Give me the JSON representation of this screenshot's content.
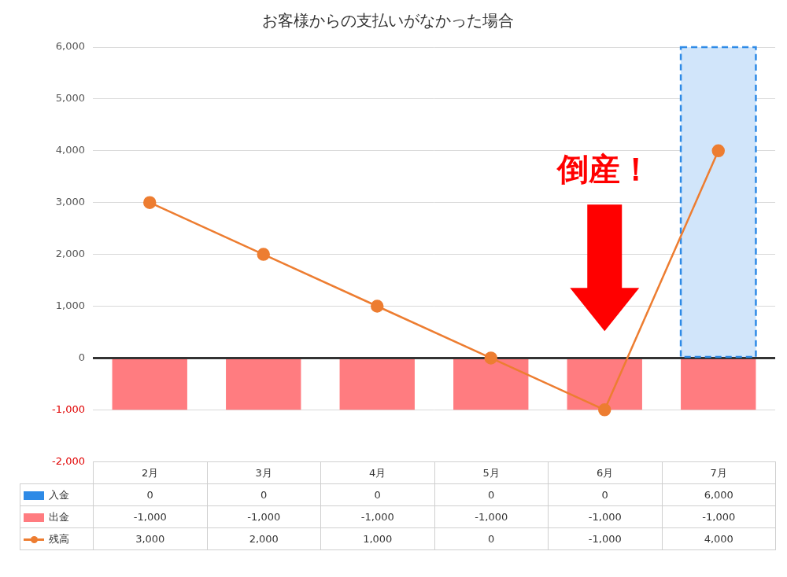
{
  "chart_data": {
    "type": "bar",
    "title": "お客様からの支払いがなかった場合",
    "categories": [
      "2月",
      "3月",
      "4月",
      "5月",
      "6月",
      "7月"
    ],
    "series": [
      {
        "name": "入金",
        "type": "bar",
        "color": "#2e8ae6",
        "line_style": "dashed",
        "values": [
          0,
          0,
          0,
          0,
          0,
          6000
        ],
        "value_labels": [
          "0",
          "0",
          "0",
          "0",
          "0",
          "6,000"
        ]
      },
      {
        "name": "出金",
        "type": "bar",
        "color": "#ff7c80",
        "values": [
          -1000,
          -1000,
          -1000,
          -1000,
          -1000,
          -1000
        ],
        "value_labels": [
          "-1,000",
          "-1,000",
          "-1,000",
          "-1,000",
          "-1,000",
          "-1,000"
        ]
      },
      {
        "name": "残高",
        "type": "line",
        "color": "#ed7d31",
        "marker": "circle",
        "values": [
          3000,
          2000,
          1000,
          0,
          -1000,
          4000
        ],
        "value_labels": [
          "3,000",
          "2,000",
          "1,000",
          "0",
          "-1,000",
          "4,000"
        ]
      }
    ],
    "ylim": [
      -2000,
      6000
    ],
    "yticks": [
      {
        "value": -2000,
        "label": "-2,000"
      },
      {
        "value": -1000,
        "label": "-1,000"
      },
      0,
      {
        "value": 1000,
        "label": "1,000"
      },
      {
        "value": 2000,
        "label": "2,000"
      },
      {
        "value": 3000,
        "label": "3,000"
      },
      {
        "value": 4000,
        "label": "4,000"
      },
      {
        "value": 5000,
        "label": "5,000"
      },
      {
        "value": 6000,
        "label": "6,000"
      }
    ],
    "grid": true,
    "stacked": true,
    "legend": "bottom",
    "tick_labels": "y",
    "annotations": [
      {
        "text": "倒産！",
        "category": "6月"
      }
    ]
  }
}
